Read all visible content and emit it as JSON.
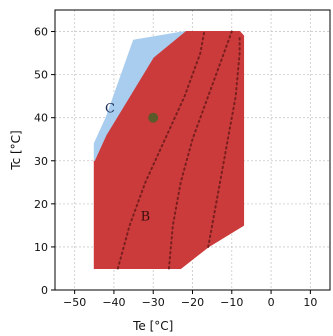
{
  "chart_data": {
    "type": "area",
    "xlabel": "Te [°C]",
    "ylabel": "Tc [°C]",
    "xlim": [
      -55,
      15
    ],
    "ylim": [
      0,
      65
    ],
    "xticks": [
      -50,
      -40,
      -30,
      -20,
      -10,
      0,
      10
    ],
    "yticks": [
      0,
      10,
      20,
      30,
      40,
      50,
      60
    ],
    "grid": true,
    "regions": [
      {
        "label": "B",
        "color": "#cc3b3b",
        "label_at": [
          -32,
          17
        ],
        "polygon": [
          [
            -45,
            5
          ],
          [
            -23,
            5
          ],
          [
            -16,
            10
          ],
          [
            -7,
            15
          ],
          [
            -7,
            59
          ],
          [
            -8,
            60
          ],
          [
            -22,
            60
          ],
          [
            -30,
            54
          ],
          [
            -42,
            36
          ],
          [
            -45,
            30
          ]
        ]
      },
      {
        "label": "C",
        "color": "#a8cdee",
        "label_at": [
          -41,
          42
        ],
        "polygon": [
          [
            -45,
            30
          ],
          [
            -45,
            34
          ],
          [
            -42,
            40
          ],
          [
            -35,
            58
          ],
          [
            -22,
            60
          ],
          [
            -30,
            54
          ],
          [
            -42,
            36
          ]
        ]
      }
    ],
    "dotted_curves": [
      {
        "x": [
          -39,
          -36,
          -32,
          -27,
          -22,
          -18,
          -17
        ],
        "y": [
          5,
          15,
          25,
          35,
          45,
          55,
          60
        ]
      },
      {
        "x": [
          -26,
          -25,
          -23,
          -20,
          -16,
          -12,
          -10
        ],
        "y": [
          5,
          15,
          25,
          35,
          45,
          55,
          60
        ]
      },
      {
        "x": [
          -16,
          -15,
          -13,
          -11,
          -9,
          -8,
          -8
        ],
        "y": [
          10,
          15,
          25,
          35,
          45,
          55,
          59
        ]
      }
    ],
    "point": {
      "x": -30,
      "y": 40,
      "color": "#5a5a2a"
    }
  }
}
